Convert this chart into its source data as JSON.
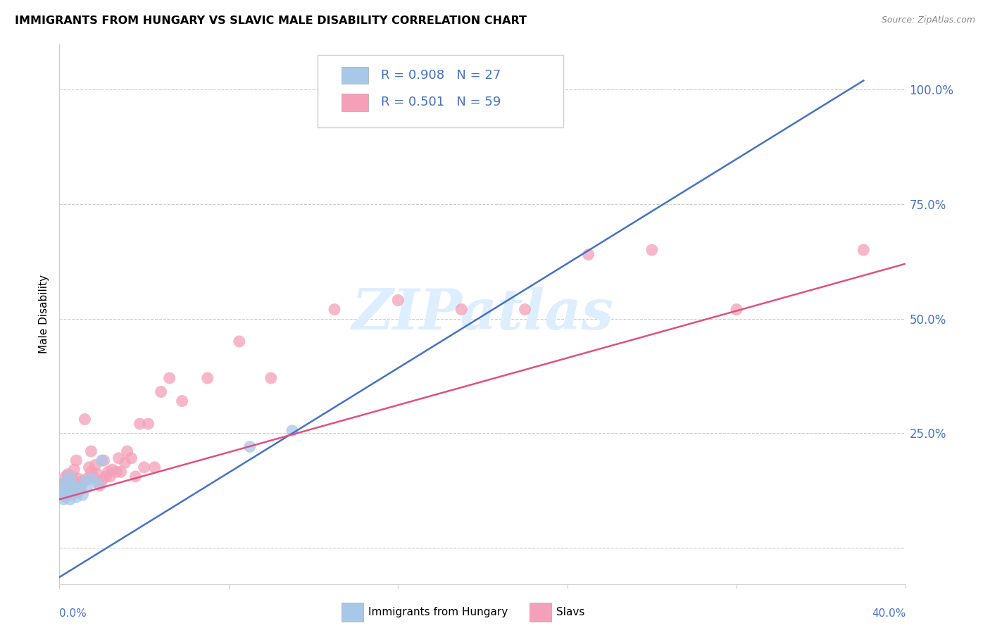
{
  "title": "IMMIGRANTS FROM HUNGARY VS SLAVIC MALE DISABILITY CORRELATION CHART",
  "source": "Source: ZipAtlas.com",
  "ylabel": "Male Disability",
  "xlim": [
    0.0,
    0.4
  ],
  "ylim": [
    -0.08,
    1.1
  ],
  "blue_color": "#a8c8e8",
  "pink_color": "#f4a0b8",
  "blue_line_color": "#4472c4",
  "pink_line_color": "#e05080",
  "watermark_color": "#ddeeff",
  "legend_r1": "R = 0.908",
  "legend_n1": "N = 27",
  "legend_r2": "R = 0.501",
  "legend_n2": "N = 59",
  "ytick_vals": [
    0.0,
    0.25,
    0.5,
    0.75,
    1.0
  ],
  "ytick_labels": [
    "",
    "25.0%",
    "50.0%",
    "75.0%",
    "100.0%"
  ],
  "blue_line_x0": 0.0,
  "blue_line_y0": -0.065,
  "blue_line_x1": 0.38,
  "blue_line_y1": 1.02,
  "pink_line_x0": 0.0,
  "pink_line_y0": 0.105,
  "pink_line_x1": 0.4,
  "pink_line_y1": 0.62,
  "blue_scatter_x": [
    0.001,
    0.001,
    0.002,
    0.002,
    0.003,
    0.003,
    0.003,
    0.004,
    0.004,
    0.005,
    0.005,
    0.005,
    0.006,
    0.006,
    0.007,
    0.007,
    0.008,
    0.009,
    0.01,
    0.011,
    0.012,
    0.013,
    0.015,
    0.018,
    0.02,
    0.09,
    0.11
  ],
  "blue_scatter_y": [
    0.115,
    0.125,
    0.105,
    0.13,
    0.11,
    0.12,
    0.145,
    0.115,
    0.13,
    0.105,
    0.12,
    0.155,
    0.115,
    0.14,
    0.125,
    0.13,
    0.11,
    0.12,
    0.13,
    0.115,
    0.145,
    0.13,
    0.15,
    0.14,
    0.19,
    0.22,
    0.255
  ],
  "pink_scatter_x": [
    0.001,
    0.001,
    0.002,
    0.002,
    0.003,
    0.003,
    0.004,
    0.004,
    0.005,
    0.005,
    0.006,
    0.006,
    0.007,
    0.007,
    0.008,
    0.008,
    0.009,
    0.01,
    0.011,
    0.012,
    0.013,
    0.014,
    0.015,
    0.015,
    0.016,
    0.017,
    0.018,
    0.019,
    0.02,
    0.021,
    0.022,
    0.023,
    0.024,
    0.025,
    0.027,
    0.028,
    0.029,
    0.031,
    0.032,
    0.034,
    0.036,
    0.038,
    0.04,
    0.042,
    0.045,
    0.048,
    0.052,
    0.058,
    0.07,
    0.085,
    0.1,
    0.13,
    0.16,
    0.19,
    0.22,
    0.25,
    0.28,
    0.32,
    0.38
  ],
  "pink_scatter_y": [
    0.115,
    0.135,
    0.12,
    0.14,
    0.115,
    0.155,
    0.125,
    0.16,
    0.13,
    0.145,
    0.12,
    0.155,
    0.14,
    0.17,
    0.125,
    0.19,
    0.15,
    0.13,
    0.145,
    0.28,
    0.15,
    0.175,
    0.165,
    0.21,
    0.155,
    0.18,
    0.16,
    0.135,
    0.145,
    0.19,
    0.155,
    0.165,
    0.155,
    0.17,
    0.165,
    0.195,
    0.165,
    0.185,
    0.21,
    0.195,
    0.155,
    0.27,
    0.175,
    0.27,
    0.175,
    0.34,
    0.37,
    0.32,
    0.37,
    0.45,
    0.37,
    0.52,
    0.54,
    0.52,
    0.52,
    0.64,
    0.65,
    0.52,
    0.65
  ]
}
